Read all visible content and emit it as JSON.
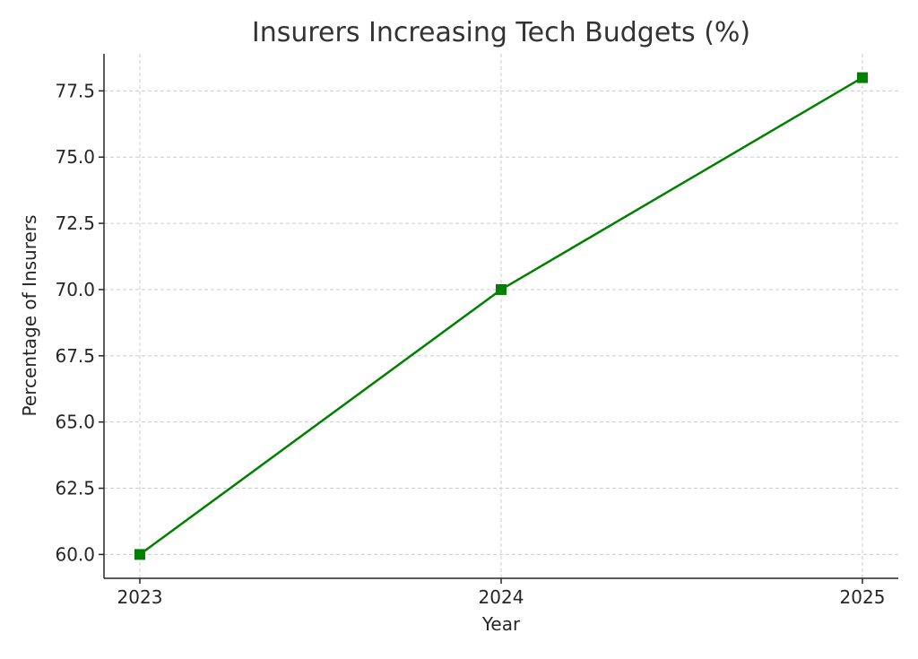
{
  "chart_data": {
    "type": "line",
    "title": "Insurers Increasing Tech Budgets (%)",
    "xlabel": "Year",
    "ylabel": "Percentage of Insurers",
    "x": [
      "2023",
      "2024",
      "2025"
    ],
    "series": [
      {
        "values": [
          60,
          70,
          78
        ],
        "color": "#008000",
        "marker": "square"
      }
    ],
    "ylim": [
      59.1,
      78.9
    ],
    "yticks": [
      60.0,
      62.5,
      65.0,
      67.5,
      70.0,
      72.5,
      75.0,
      77.5
    ],
    "ytick_labels": [
      "60.0",
      "62.5",
      "65.0",
      "67.5",
      "70.0",
      "72.5",
      "75.0",
      "77.5"
    ],
    "grid": true,
    "legend": "none"
  }
}
